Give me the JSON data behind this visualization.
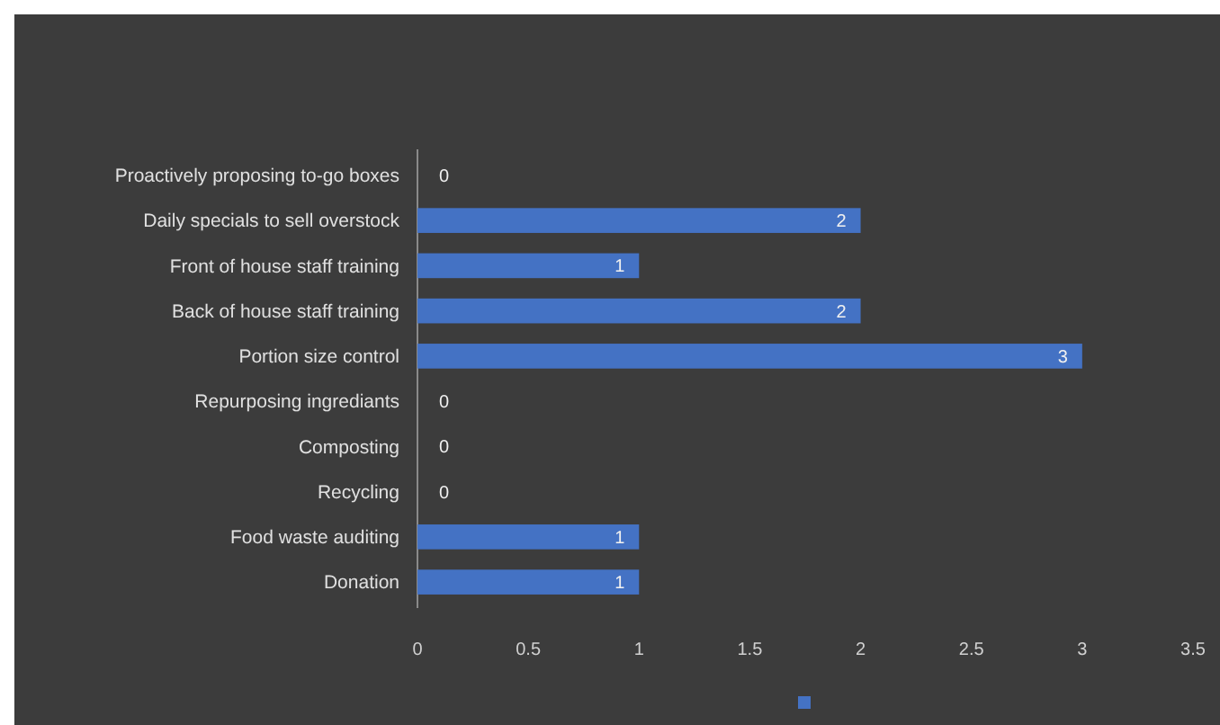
{
  "chart_data": {
    "type": "bar",
    "orientation": "horizontal",
    "categories": [
      "Proactively proposing to-go boxes",
      "Daily specials to sell overstock",
      "Front of house staff training",
      "Back of house staff training",
      "Portion size control",
      "Repurposing ingrediants",
      "Composting",
      "Recycling",
      "Food waste auditing",
      "Donation"
    ],
    "values": [
      0,
      2,
      1,
      2,
      3,
      0,
      0,
      0,
      1,
      1
    ],
    "color": "#4472c4",
    "xlim": [
      0,
      3.5
    ],
    "xticks": [
      0,
      0.5,
      1,
      1.5,
      2,
      2.5,
      3,
      3.5
    ],
    "data_labels": true
  }
}
